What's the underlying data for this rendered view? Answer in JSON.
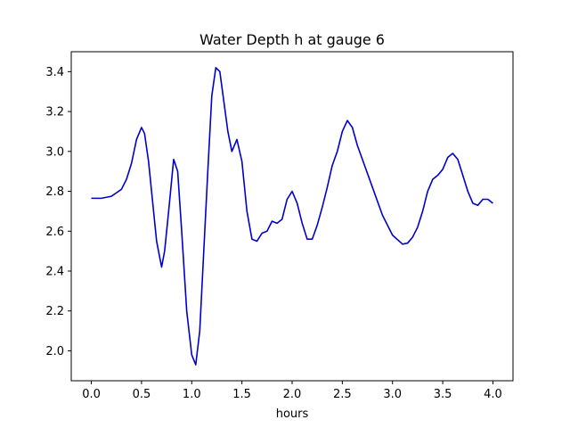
{
  "chart_data": {
    "type": "line",
    "title": "Water Depth h at gauge 6",
    "xlabel": "hours",
    "ylabel": "",
    "xlim": [
      -0.2,
      4.2
    ],
    "ylim": [
      1.85,
      3.5
    ],
    "xticks": [
      "0.0",
      "0.5",
      "1.0",
      "1.5",
      "2.0",
      "2.5",
      "3.0",
      "3.5",
      "4.0"
    ],
    "yticks": [
      "2.0",
      "2.2",
      "2.4",
      "2.6",
      "2.8",
      "3.0",
      "3.2",
      "3.4"
    ],
    "grid": false,
    "line_color": "#0000cc",
    "series": [
      {
        "name": "",
        "x": [
          0.0,
          0.1,
          0.2,
          0.3,
          0.35,
          0.4,
          0.45,
          0.5,
          0.53,
          0.57,
          0.6,
          0.65,
          0.7,
          0.73,
          0.77,
          0.82,
          0.86,
          0.9,
          0.95,
          1.0,
          1.04,
          1.08,
          1.12,
          1.16,
          1.2,
          1.24,
          1.28,
          1.32,
          1.36,
          1.4,
          1.45,
          1.5,
          1.55,
          1.6,
          1.65,
          1.7,
          1.75,
          1.8,
          1.85,
          1.9,
          1.95,
          2.0,
          2.05,
          2.1,
          2.15,
          2.2,
          2.25,
          2.3,
          2.35,
          2.4,
          2.45,
          2.5,
          2.55,
          2.6,
          2.65,
          2.7,
          2.8,
          2.9,
          3.0,
          3.1,
          3.15,
          3.2,
          3.25,
          3.3,
          3.35,
          3.4,
          3.45,
          3.5,
          3.55,
          3.6,
          3.65,
          3.7,
          3.75,
          3.8,
          3.85,
          3.9,
          3.95,
          4.0
        ],
        "y": [
          2.765,
          2.765,
          2.775,
          2.81,
          2.86,
          2.94,
          3.06,
          3.12,
          3.09,
          2.95,
          2.8,
          2.55,
          2.42,
          2.5,
          2.7,
          2.96,
          2.9,
          2.6,
          2.2,
          1.98,
          1.93,
          2.1,
          2.5,
          2.9,
          3.28,
          3.42,
          3.4,
          3.25,
          3.1,
          3.0,
          3.06,
          2.95,
          2.7,
          2.56,
          2.55,
          2.59,
          2.6,
          2.65,
          2.64,
          2.66,
          2.76,
          2.8,
          2.74,
          2.64,
          2.56,
          2.56,
          2.63,
          2.72,
          2.82,
          2.93,
          3.0,
          3.1,
          3.155,
          3.12,
          3.03,
          2.96,
          2.82,
          2.68,
          2.58,
          2.535,
          2.54,
          2.57,
          2.62,
          2.7,
          2.8,
          2.86,
          2.88,
          2.91,
          2.97,
          2.99,
          2.96,
          2.88,
          2.8,
          2.74,
          2.73,
          2.76,
          2.76,
          2.74
        ]
      }
    ]
  }
}
